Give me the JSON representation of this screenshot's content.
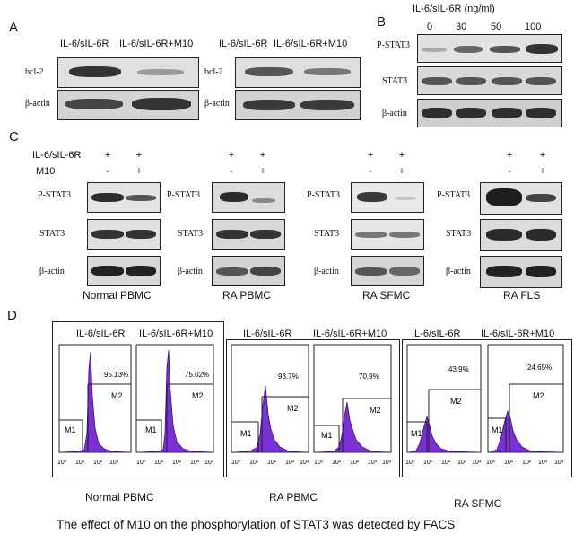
{
  "panels": {
    "A": {
      "letter": "A",
      "groups": [
        {
          "lanes": [
            "IL-6/sIL-6R",
            "IL-6/sIL-6R+M10"
          ],
          "rows": [
            "bcl-2",
            "β-actin"
          ]
        },
        {
          "lanes": [
            "IL-6/sIL-6R",
            "IL-6/sIL-6R+M10"
          ],
          "rows": [
            "bcl-2",
            "β-actin"
          ]
        }
      ]
    },
    "B": {
      "letter": "B",
      "header": "IL-6/sIL-6R  (ng/ml)",
      "doses": [
        "0",
        "30",
        "50",
        "100"
      ],
      "rows": [
        "P-STAT3",
        "STAT3",
        "β-actin"
      ]
    },
    "C": {
      "letter": "C",
      "treat_label_1": "IL-6/sIL-6R",
      "treat_label_2": "M10",
      "plus": "+",
      "minus": "-",
      "rows": [
        "P-STAT3",
        "STAT3",
        "β-actin"
      ],
      "groups": [
        "Normal PBMC",
        "RA PBMC",
        "RA SFMC",
        "RA FLS"
      ]
    },
    "D": {
      "letter": "D",
      "plots": [
        {
          "title": "IL-6/sIL-6R",
          "percent": "95.13%",
          "m1": "M1",
          "m2": "M2"
        },
        {
          "title": "IL-6/sIL-6R+M10",
          "percent": "75.02%",
          "m1": "M1",
          "m2": "M2"
        },
        {
          "title": "IL-6/sIL-6R",
          "percent": "93.7%",
          "m1": "M1",
          "m2": "M2"
        },
        {
          "title": "IL-6/sIL-6R+M10",
          "percent": "70.9%",
          "m1": "M1",
          "m2": "M2"
        },
        {
          "title": "IL-6/sIL-6R",
          "percent": "43.9%",
          "m1": "M1",
          "m2": "M2"
        },
        {
          "title": "IL-6/sIL-6R+M10",
          "percent": "24.65%",
          "m1": "M1",
          "m2": "M2"
        }
      ],
      "axis_ticks": [
        "10⁰",
        "10¹",
        "10²",
        "10³",
        "10⁴"
      ],
      "groups": [
        "Normal PBMC",
        "RA PBMC",
        "RA SFMC"
      ]
    }
  },
  "caption": "The effect of M10 on the phosphorylation of STAT3 was detected by FACS",
  "colors": {
    "histogram_fill": "#7b2fd6",
    "band": "#2a2a2a",
    "strip_bg": "#d9d9d9"
  }
}
